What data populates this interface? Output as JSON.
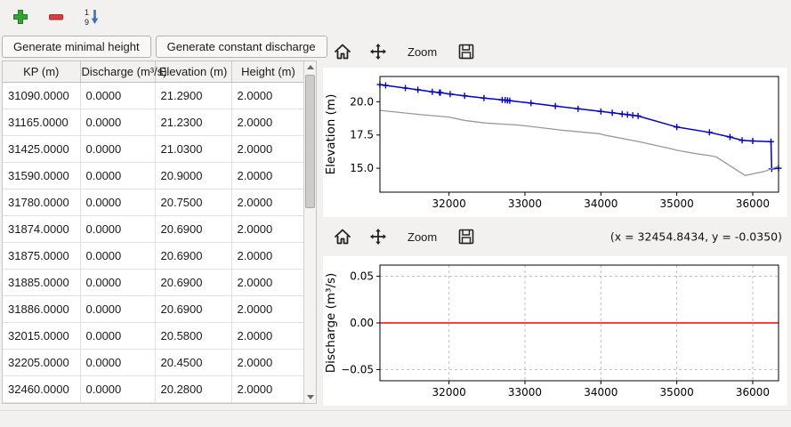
{
  "main_toolbar": {
    "sort_digit_top": "1",
    "sort_digit_bottom": "9",
    "add_color": "#35a435",
    "remove_color": "#d84040",
    "sort_color": "#3b6fc4"
  },
  "left_panel": {
    "generate_minimal_height_label": "Generate minimal height",
    "generate_constant_discharge_label": "Generate constant discharge",
    "table": {
      "columns": [
        "KP (m)",
        "Discharge (m³/s)",
        "Elevation (m)",
        "Height (m)"
      ],
      "rows": [
        [
          "31090.0000",
          "0.0000",
          "21.2900",
          "2.0000"
        ],
        [
          "31165.0000",
          "0.0000",
          "21.2300",
          "2.0000"
        ],
        [
          "31425.0000",
          "0.0000",
          "21.0300",
          "2.0000"
        ],
        [
          "31590.0000",
          "0.0000",
          "20.9000",
          "2.0000"
        ],
        [
          "31780.0000",
          "0.0000",
          "20.7500",
          "2.0000"
        ],
        [
          "31874.0000",
          "0.0000",
          "20.6900",
          "2.0000"
        ],
        [
          "31875.0000",
          "0.0000",
          "20.6900",
          "2.0000"
        ],
        [
          "31885.0000",
          "0.0000",
          "20.6900",
          "2.0000"
        ],
        [
          "31886.0000",
          "0.0000",
          "20.6900",
          "2.0000"
        ],
        [
          "32015.0000",
          "0.0000",
          "20.5800",
          "2.0000"
        ],
        [
          "32205.0000",
          "0.0000",
          "20.4500",
          "2.0000"
        ],
        [
          "32460.0000",
          "0.0000",
          "20.2800",
          "2.0000"
        ]
      ]
    }
  },
  "elevation_panel": {
    "toolbar": {
      "zoom_label": "Zoom"
    }
  },
  "discharge_panel": {
    "toolbar": {
      "zoom_label": "Zoom",
      "coords_readout": "(x = 32454.8434,  y = -0.0350)"
    }
  },
  "chart_data": [
    {
      "type": "line",
      "target": "elevation-chart",
      "title": "",
      "xlabel": "",
      "ylabel": "Elevation (m)",
      "xlim": [
        31090,
        36340
      ],
      "ylim": [
        13.2,
        21.9
      ],
      "xticks": [
        32000,
        33000,
        34000,
        35000,
        36000
      ],
      "xticklabels": [
        "32000",
        "33000",
        "34000",
        "35000",
        "36000"
      ],
      "yticks": [
        15.0,
        17.5,
        20.0
      ],
      "yticklabels": [
        "15.0",
        "17.5",
        "20.0"
      ],
      "grid": false,
      "legend": false,
      "series": [
        {
          "name": "water-elevation",
          "color": "#0000cd",
          "marker": "+",
          "width": 1.5,
          "points": [
            [
              31090,
              21.29
            ],
            [
              31165,
              21.23
            ],
            [
              31425,
              21.03
            ],
            [
              31590,
              20.9
            ],
            [
              31780,
              20.75
            ],
            [
              31875,
              20.69
            ],
            [
              31886,
              20.69
            ],
            [
              32015,
              20.58
            ],
            [
              32205,
              20.45
            ],
            [
              32460,
              20.28
            ],
            [
              32700,
              20.14
            ],
            [
              32740,
              20.12
            ],
            [
              32770,
              20.1
            ],
            [
              32800,
              20.08
            ],
            [
              33080,
              19.9
            ],
            [
              33400,
              19.68
            ],
            [
              33700,
              19.47
            ],
            [
              34000,
              19.27
            ],
            [
              34150,
              19.17
            ],
            [
              34280,
              19.08
            ],
            [
              34350,
              19.03
            ],
            [
              34420,
              18.98
            ],
            [
              34490,
              18.93
            ],
            [
              35000,
              18.1
            ],
            [
              35430,
              17.7
            ],
            [
              35700,
              17.35
            ],
            [
              35860,
              17.1
            ],
            [
              36000,
              17.05
            ],
            [
              36240,
              17.0
            ],
            [
              36250,
              14.95
            ],
            [
              36340,
              15.0
            ]
          ]
        },
        {
          "name": "bed-elevation",
          "color": "#999999",
          "marker": null,
          "width": 1.3,
          "points": [
            [
              31090,
              19.35
            ],
            [
              31600,
              19.05
            ],
            [
              32000,
              18.85
            ],
            [
              32200,
              18.6
            ],
            [
              32480,
              18.4
            ],
            [
              32900,
              18.25
            ],
            [
              33060,
              18.15
            ],
            [
              33500,
              17.85
            ],
            [
              33980,
              17.6
            ],
            [
              34040,
              17.5
            ],
            [
              34500,
              17.0
            ],
            [
              34900,
              16.5
            ],
            [
              35000,
              16.35
            ],
            [
              35250,
              16.1
            ],
            [
              35430,
              15.95
            ],
            [
              35520,
              15.85
            ],
            [
              35900,
              14.45
            ],
            [
              36150,
              14.75
            ],
            [
              36340,
              15.15
            ]
          ]
        }
      ]
    },
    {
      "type": "line",
      "target": "discharge-chart",
      "title": "",
      "xlabel": "",
      "ylabel": "Discharge (m³/s)",
      "xlim": [
        31090,
        36340
      ],
      "ylim": [
        -0.062,
        0.062
      ],
      "xticks": [
        32000,
        33000,
        34000,
        35000,
        36000
      ],
      "xticklabels": [
        "32000",
        "33000",
        "34000",
        "35000",
        "36000"
      ],
      "yticks": [
        0.05,
        0.0,
        -0.05
      ],
      "yticklabels": [
        "0.05",
        "0.00",
        "−0.05"
      ],
      "grid": true,
      "legend": false,
      "series": [
        {
          "name": "discharge",
          "color": "#ff0000",
          "marker": null,
          "width": 1.5,
          "points": [
            [
              31090,
              0
            ],
            [
              36340,
              0
            ]
          ]
        }
      ]
    }
  ]
}
